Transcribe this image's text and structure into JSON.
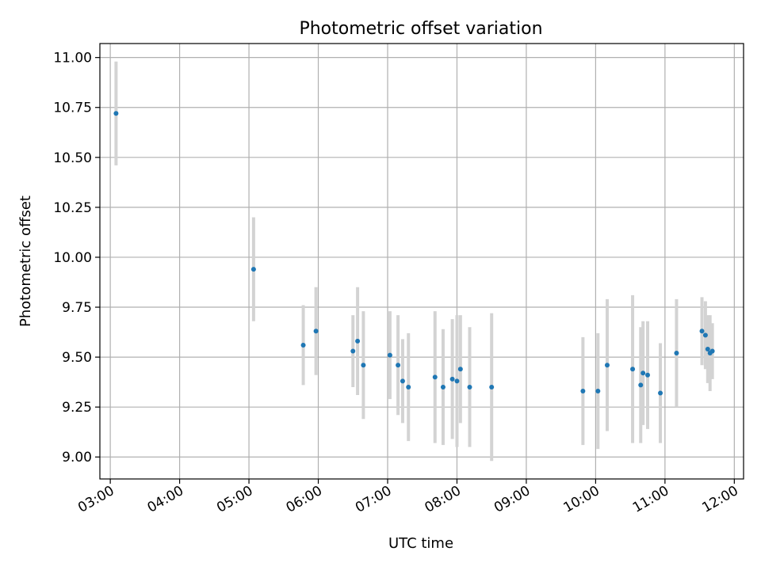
{
  "chart_data": {
    "type": "scatter",
    "title": "Photometric offset variation",
    "xlabel": "UTC time",
    "ylabel": "Photometric offset",
    "x_ticks": [
      "03:00",
      "04:00",
      "05:00",
      "06:00",
      "07:00",
      "08:00",
      "09:00",
      "10:00",
      "11:00",
      "12:00"
    ],
    "y_ticks": [
      "9.00",
      "9.25",
      "9.50",
      "9.75",
      "10.00",
      "10.25",
      "10.50",
      "10.75",
      "11.00"
    ],
    "xlim": [
      "02:51",
      "12:08"
    ],
    "ylim": [
      8.89,
      11.07
    ],
    "grid": true,
    "colors": {
      "point": "#1f77b4",
      "errorbar": "#d3d3d3",
      "grid": "#b0b0b0"
    },
    "series": [
      {
        "points": [
          {
            "x": "03:05",
            "y": 10.72,
            "err": 0.26
          },
          {
            "x": "05:04",
            "y": 9.94,
            "err": 0.26
          },
          {
            "x": "05:47",
            "y": 9.56,
            "err": 0.2
          },
          {
            "x": "05:58",
            "y": 9.63,
            "err": 0.22
          },
          {
            "x": "06:30",
            "y": 9.53,
            "err": 0.18
          },
          {
            "x": "06:34",
            "y": 9.58,
            "err": 0.27
          },
          {
            "x": "06:39",
            "y": 9.46,
            "err": 0.27
          },
          {
            "x": "07:02",
            "y": 9.51,
            "err": 0.22
          },
          {
            "x": "07:09",
            "y": 9.46,
            "err": 0.25
          },
          {
            "x": "07:13",
            "y": 9.38,
            "err": 0.21
          },
          {
            "x": "07:18",
            "y": 9.35,
            "err": 0.27
          },
          {
            "x": "07:41",
            "y": 9.4,
            "err": 0.33
          },
          {
            "x": "07:48",
            "y": 9.35,
            "err": 0.29
          },
          {
            "x": "07:56",
            "y": 9.39,
            "err": 0.3
          },
          {
            "x": "08:00",
            "y": 9.38,
            "err": 0.33
          },
          {
            "x": "08:03",
            "y": 9.44,
            "err": 0.27
          },
          {
            "x": "08:11",
            "y": 9.35,
            "err": 0.3
          },
          {
            "x": "08:30",
            "y": 9.35,
            "err": 0.37
          },
          {
            "x": "09:49",
            "y": 9.33,
            "err": 0.27
          },
          {
            "x": "10:02",
            "y": 9.33,
            "err": 0.29
          },
          {
            "x": "10:10",
            "y": 9.46,
            "err": 0.33
          },
          {
            "x": "10:32",
            "y": 9.44,
            "err": 0.37
          },
          {
            "x": "10:39",
            "y": 9.36,
            "err": 0.29
          },
          {
            "x": "10:41",
            "y": 9.42,
            "err": 0.26
          },
          {
            "x": "10:45",
            "y": 9.41,
            "err": 0.27
          },
          {
            "x": "10:56",
            "y": 9.32,
            "err": 0.25
          },
          {
            "x": "11:10",
            "y": 9.52,
            "err": 0.27
          },
          {
            "x": "11:32",
            "y": 9.63,
            "err": 0.17
          },
          {
            "x": "11:35",
            "y": 9.61,
            "err": 0.17
          },
          {
            "x": "11:37",
            "y": 9.54,
            "err": 0.17
          },
          {
            "x": "11:39",
            "y": 9.52,
            "err": 0.19
          },
          {
            "x": "11:41",
            "y": 9.53,
            "err": 0.14
          }
        ]
      }
    ]
  }
}
